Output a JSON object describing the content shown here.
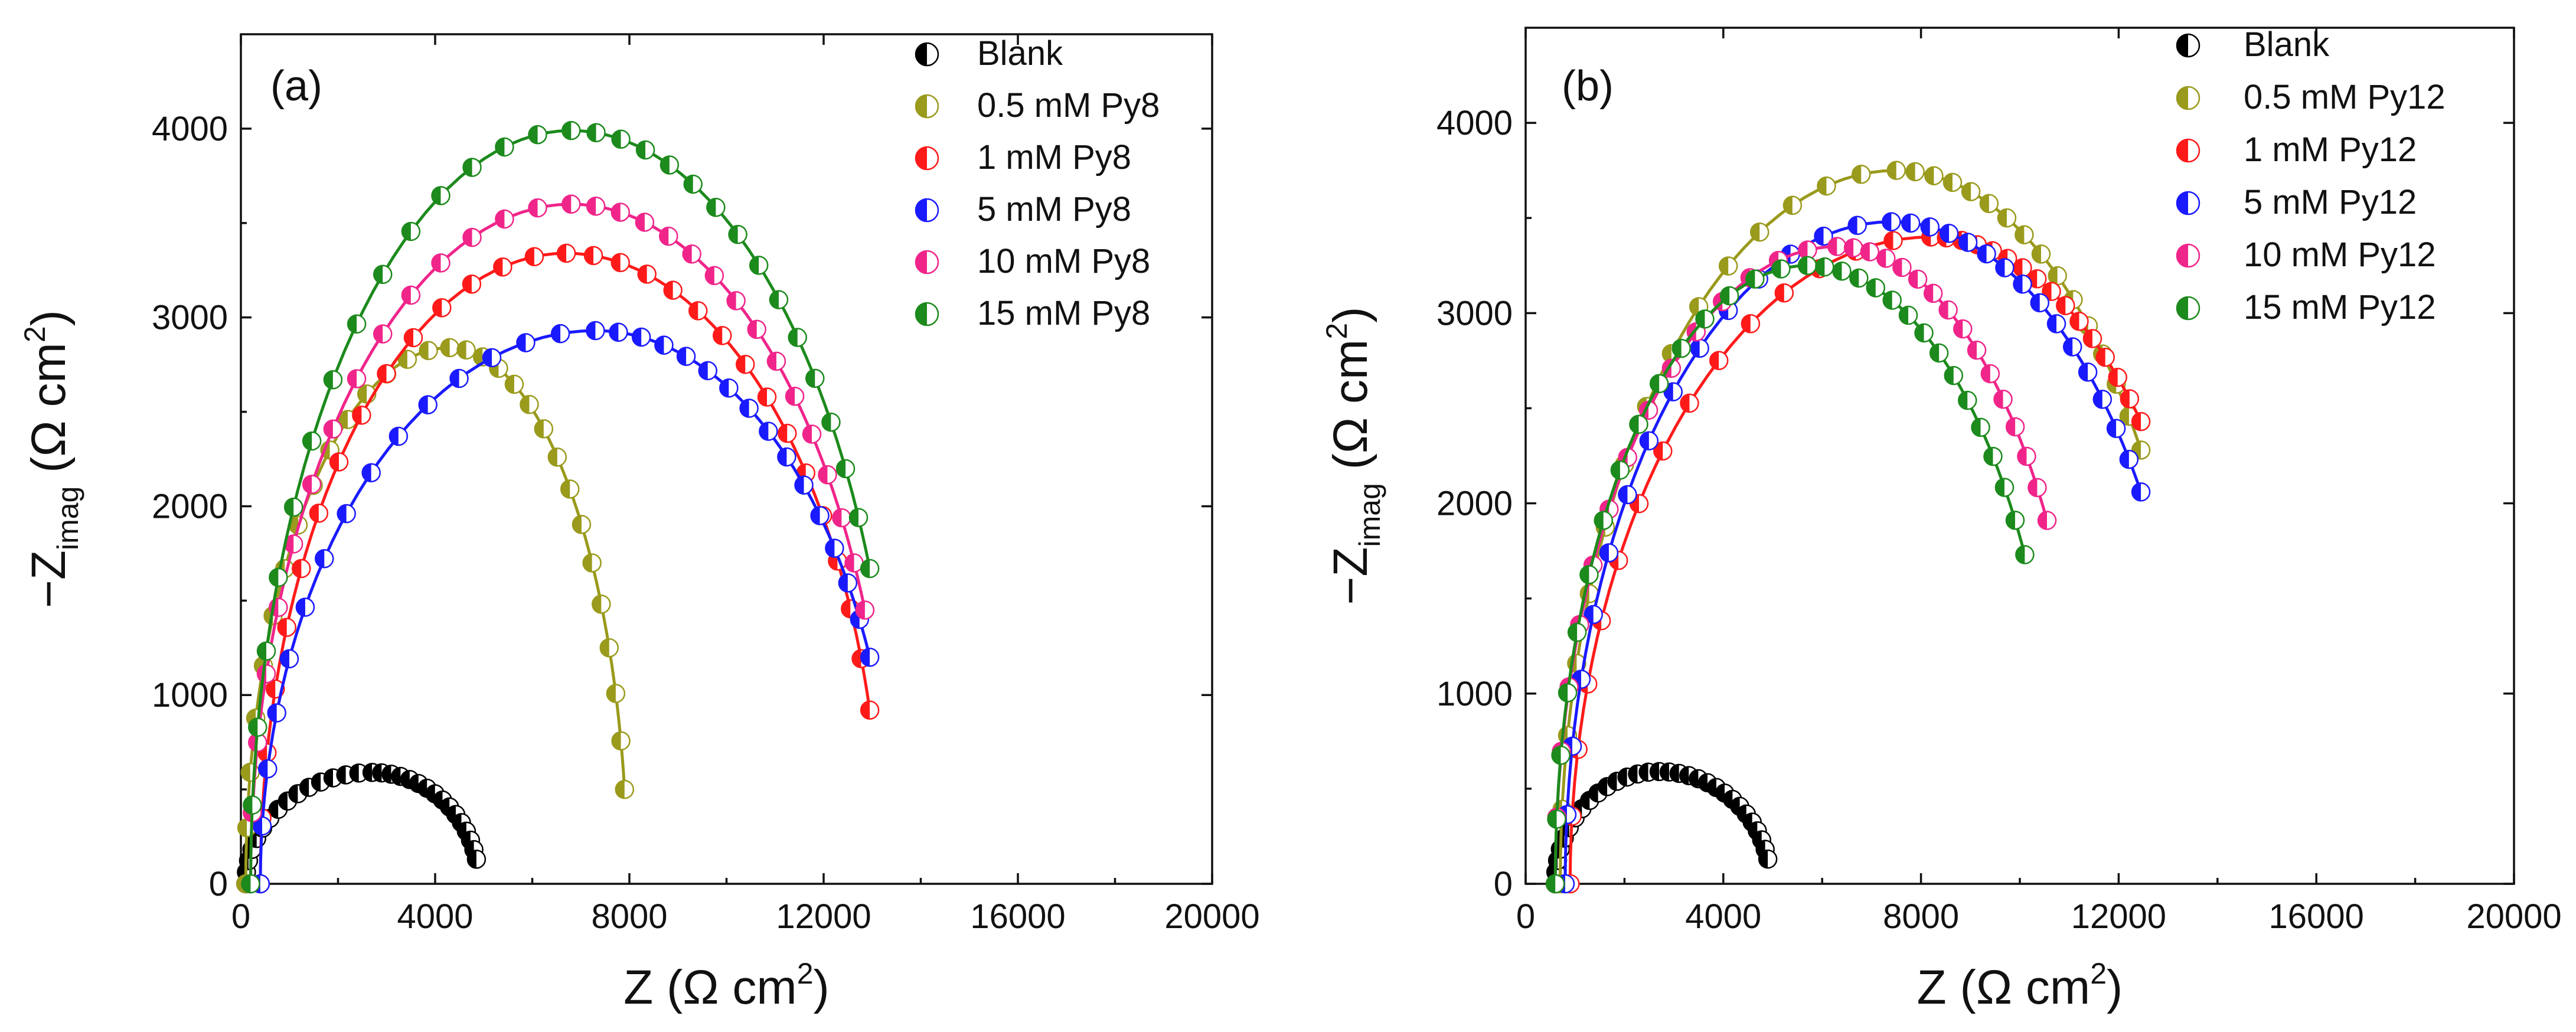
{
  "chart_data": [
    {
      "type": "scatter",
      "panel_label": "(a)",
      "xlabel_prefix": "Z (Ω cm",
      "xlabel_sup": "2",
      "xlabel_suffix": ")",
      "ylabel_prefix": "−Z",
      "ylabel_sub": "imag",
      "ylabel_mid": " (Ω cm",
      "ylabel_sup": "2",
      "ylabel_suffix": ")",
      "xlim": [
        0,
        20000
      ],
      "ylim": [
        0,
        4500
      ],
      "xticks": [
        0,
        4000,
        8000,
        12000,
        16000,
        20000
      ],
      "yticks": [
        0,
        1000,
        2000,
        3000,
        4000
      ],
      "legend_position": "top-right",
      "series": [
        {
          "name": "Blank",
          "color": "#000000",
          "x0": 100,
          "peak_x": 2700,
          "peak_y": 590,
          "end_x": 4850,
          "end_y": 130
        },
        {
          "name": "0.5 mM Py8",
          "color": "#9a9a1c",
          "x0": 100,
          "peak_x": 4300,
          "peak_y": 2840,
          "end_x": 7900,
          "end_y": 500
        },
        {
          "name": "1 mM Py8",
          "color": "#ff1a1a",
          "x0": 400,
          "peak_x": 6700,
          "peak_y": 3340,
          "end_x": 12950,
          "end_y": 920
        },
        {
          "name": "5 mM Py8",
          "color": "#1a1aff",
          "x0": 400,
          "peak_x": 7300,
          "peak_y": 2930,
          "end_x": 12950,
          "end_y": 1200
        },
        {
          "name": "10 mM Py8",
          "color": "#f0258a",
          "x0": 200,
          "peak_x": 6800,
          "peak_y": 3600,
          "end_x": 12850,
          "end_y": 1450
        },
        {
          "name": "15 mM Py8",
          "color": "#1c8a1c",
          "x0": 200,
          "peak_x": 6800,
          "peak_y": 3990,
          "end_x": 12950,
          "end_y": 1670
        }
      ]
    },
    {
      "type": "scatter",
      "panel_label": "(b)",
      "xlabel_prefix": "Z (Ω cm",
      "xlabel_sup": "2",
      "xlabel_suffix": ")",
      "ylabel_prefix": "−Z",
      "ylabel_sub": "imag",
      "ylabel_mid": " (Ω cm",
      "ylabel_sup": "2",
      "ylabel_suffix": ")",
      "xlim": [
        0,
        20000
      ],
      "ylim": [
        0,
        4500
      ],
      "xticks": [
        0,
        4000,
        8000,
        12000,
        16000,
        20000
      ],
      "yticks": [
        0,
        1000,
        2000,
        3000,
        4000
      ],
      "legend_position": "top-right",
      "series": [
        {
          "name": "Blank",
          "color": "#000000",
          "x0": 600,
          "peak_x": 2700,
          "peak_y": 590,
          "end_x": 4900,
          "end_y": 130
        },
        {
          "name": "0.5 mM Py12",
          "color": "#9a9a1c",
          "x0": 700,
          "peak_x": 7500,
          "peak_y": 3750,
          "end_x": 12450,
          "end_y": 2280
        },
        {
          "name": "1 mM Py12",
          "color": "#ff1a1a",
          "x0": 900,
          "peak_x": 8200,
          "peak_y": 3400,
          "end_x": 12450,
          "end_y": 2430
        },
        {
          "name": "5 mM Py12",
          "color": "#1a1aff",
          "x0": 800,
          "peak_x": 7400,
          "peak_y": 3480,
          "end_x": 12450,
          "end_y": 2060
        },
        {
          "name": "10 mM Py12",
          "color": "#f0258a",
          "x0": 600,
          "peak_x": 6300,
          "peak_y": 3350,
          "end_x": 10550,
          "end_y": 1910
        },
        {
          "name": "15 mM Py12",
          "color": "#1c8a1c",
          "x0": 600,
          "peak_x": 5700,
          "peak_y": 3250,
          "end_x": 10100,
          "end_y": 1730
        }
      ]
    }
  ]
}
